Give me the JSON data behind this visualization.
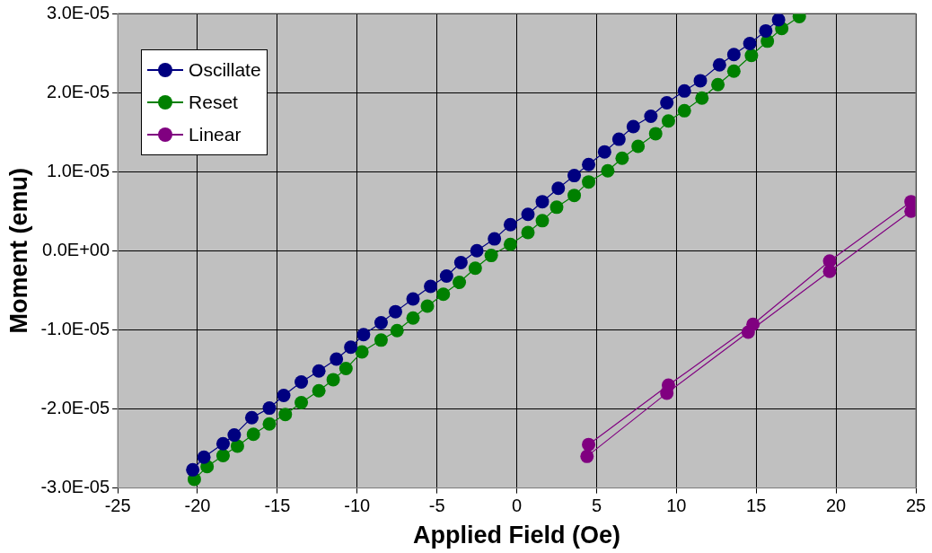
{
  "chart_data": {
    "type": "scatter",
    "xlabel": "Applied Field (Oe)",
    "ylabel": "Moment (emu)",
    "xlim": [
      -25,
      25
    ],
    "xticks": [
      -25,
      -20,
      -15,
      -10,
      -5,
      0,
      5,
      10,
      15,
      20,
      25
    ],
    "ylim": [
      -3e-05,
      3e-05
    ],
    "yticks": [
      {
        "value": -3e-05,
        "label": "-3.0E-05"
      },
      {
        "value": -2e-05,
        "label": "-2.0E-05"
      },
      {
        "value": -1e-05,
        "label": "-1.0E-05"
      },
      {
        "value": 0,
        "label": "0.0E+00"
      },
      {
        "value": 1e-05,
        "label": "1.0E-05"
      },
      {
        "value": 2e-05,
        "label": "2.0E-05"
      },
      {
        "value": 3e-05,
        "label": "3.0E-05"
      }
    ],
    "grid": true,
    "legend": "top left",
    "marker": "circle",
    "line_style": "solid",
    "series": [
      {
        "name": "Oscillate",
        "color": "#000080",
        "type": "line",
        "x": [
          -20.3,
          -19.6,
          -18.4,
          -17.7,
          -16.6,
          -15.5,
          -14.6,
          -13.5,
          -12.4,
          -11.3,
          -10.4,
          -9.6,
          -8.5,
          -7.6,
          -6.5,
          -5.4,
          -4.4,
          -3.5,
          -2.5,
          -1.4,
          -0.4,
          0.7,
          1.6,
          2.6,
          3.6,
          4.5,
          5.5,
          6.4,
          7.3,
          8.4,
          9.4,
          10.5,
          11.5,
          12.7,
          13.6,
          14.6,
          15.6,
          16.4
        ],
        "values": [
          -2.77e-05,
          -2.61e-05,
          -2.44e-05,
          -2.33e-05,
          -2.11e-05,
          -1.99e-05,
          -1.83e-05,
          -1.66e-05,
          -1.52e-05,
          -1.37e-05,
          -1.22e-05,
          -1.06e-05,
          -9.1e-06,
          -7.7e-06,
          -6.1e-06,
          -4.5e-06,
          -3.2e-06,
          -1.5e-06,
          0,
          1.5e-06,
          3.3e-06,
          4.6e-06,
          6.2e-06,
          7.9e-06,
          9.5e-06,
          1.09e-05,
          1.25e-05,
          1.41e-05,
          1.57e-05,
          1.7e-05,
          1.87e-05,
          2.02e-05,
          2.15e-05,
          2.35e-05,
          2.48e-05,
          2.62e-05,
          2.78e-05,
          2.92e-05
        ]
      },
      {
        "name": "Reset",
        "color": "#008000",
        "type": "line",
        "x": [
          -20.2,
          -19.4,
          -18.4,
          -17.5,
          -16.5,
          -15.5,
          -14.5,
          -13.5,
          -12.4,
          -11.5,
          -10.7,
          -9.7,
          -8.5,
          -7.5,
          -6.5,
          -5.6,
          -4.6,
          -3.6,
          -2.6,
          -1.6,
          -0.4,
          0.7,
          1.6,
          2.5,
          3.6,
          4.5,
          5.7,
          6.6,
          7.6,
          8.7,
          9.5,
          10.5,
          11.6,
          12.6,
          13.6,
          14.7,
          15.7,
          16.6,
          17.7
        ],
        "values": [
          -2.89e-05,
          -2.73e-05,
          -2.59e-05,
          -2.47e-05,
          -2.32e-05,
          -2.19e-05,
          -2.07e-05,
          -1.92e-05,
          -1.77e-05,
          -1.63e-05,
          -1.49e-05,
          -1.28e-05,
          -1.13e-05,
          -1.01e-05,
          -8.5e-06,
          -7e-06,
          -5.5e-06,
          -4e-06,
          -2.2e-06,
          -6e-07,
          8e-07,
          2.3e-06,
          3.8e-06,
          5.5e-06,
          7e-06,
          8.7e-06,
          1.01e-05,
          1.17e-05,
          1.32e-05,
          1.48e-05,
          1.64e-05,
          1.77e-05,
          1.93e-05,
          2.1e-05,
          2.27e-05,
          2.47e-05,
          2.65e-05,
          2.81e-05,
          2.96e-05
        ]
      },
      {
        "name": "Linear",
        "color": "#800080",
        "type": "line",
        "x": [
          4.5,
          9.5,
          14.8,
          19.6,
          24.7,
          null,
          24.7,
          19.6,
          14.5,
          9.4,
          4.4
        ],
        "values": [
          -2.45e-05,
          -1.7e-05,
          -9.3e-06,
          -1.3e-06,
          6.2e-06,
          null,
          5e-06,
          -2.6e-06,
          -1.03e-05,
          -1.8e-05,
          -2.6e-05
        ]
      }
    ]
  }
}
